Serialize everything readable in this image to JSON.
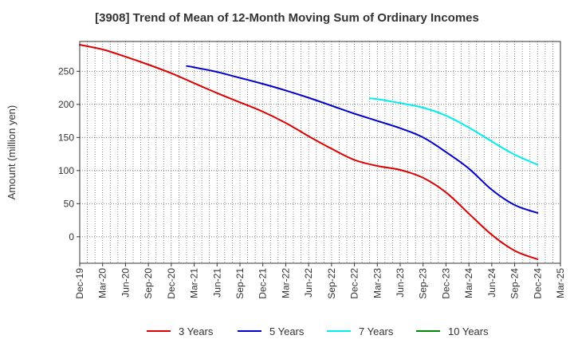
{
  "chart_data": {
    "type": "line",
    "title": "[3908]  Trend of Mean of 12-Month Moving Sum of Ordinary Incomes",
    "ylabel": "Amount (million yen)",
    "xlabel": "",
    "x_tick_labels": [
      "Dec-19",
      "Mar-20",
      "Jun-20",
      "Sep-20",
      "Dec-20",
      "Mar-21",
      "Jun-21",
      "Sep-21",
      "Dec-21",
      "Mar-22",
      "Jun-22",
      "Sep-22",
      "Dec-22",
      "Mar-23",
      "Jun-23",
      "Sep-23",
      "Dec-23",
      "Mar-24",
      "Jun-24",
      "Sep-24",
      "Dec-24",
      "Mar-25"
    ],
    "y_ticks": [
      0,
      50,
      100,
      150,
      200,
      250
    ],
    "ylim": [
      -40,
      295
    ],
    "grid": true,
    "legend_position": "bottom",
    "series": [
      {
        "name": "3 Years",
        "color": "#dd0000",
        "points": [
          [
            0,
            290
          ],
          [
            1,
            283
          ],
          [
            2,
            272
          ],
          [
            3,
            260
          ],
          [
            4,
            247
          ],
          [
            5,
            232
          ],
          [
            6,
            217
          ],
          [
            7,
            203
          ],
          [
            8,
            189
          ],
          [
            9,
            172
          ],
          [
            10,
            152
          ],
          [
            11,
            133
          ],
          [
            12,
            116
          ],
          [
            13,
            107
          ],
          [
            14,
            101
          ],
          [
            15,
            89
          ],
          [
            16,
            67
          ],
          [
            17,
            35
          ],
          [
            18,
            3
          ],
          [
            19,
            -21
          ],
          [
            20,
            -34
          ]
        ]
      },
      {
        "name": "5 Years",
        "color": "#0000cc",
        "points": [
          [
            4.67,
            258
          ],
          [
            5,
            256
          ],
          [
            6,
            249
          ],
          [
            7,
            240
          ],
          [
            8,
            231
          ],
          [
            9,
            221
          ],
          [
            10,
            210
          ],
          [
            11,
            198
          ],
          [
            12,
            186
          ],
          [
            13,
            175
          ],
          [
            14,
            164
          ],
          [
            15,
            150
          ],
          [
            16,
            128
          ],
          [
            17,
            103
          ],
          [
            18,
            71
          ],
          [
            19,
            48
          ],
          [
            20,
            36
          ]
        ]
      },
      {
        "name": "7 Years",
        "color": "#00eeee",
        "points": [
          [
            12.67,
            209
          ],
          [
            13,
            208
          ],
          [
            14,
            202
          ],
          [
            15,
            195
          ],
          [
            16,
            183
          ],
          [
            17,
            165
          ],
          [
            18,
            144
          ],
          [
            19,
            124
          ],
          [
            20,
            109
          ]
        ]
      },
      {
        "name": "10 Years",
        "color": "#008800",
        "points": []
      }
    ]
  }
}
